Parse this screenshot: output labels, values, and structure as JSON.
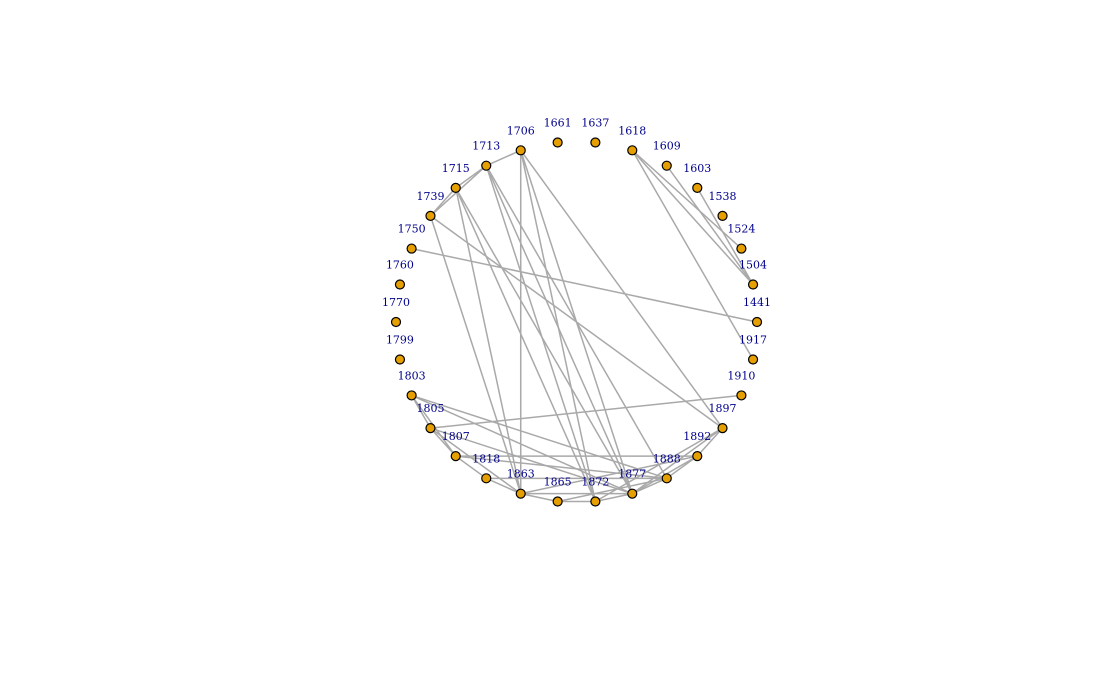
{
  "graph": {
    "layout": "circle",
    "colors": {
      "node_fill": "#E69F00",
      "node_stroke": "#000000",
      "edge": "#A9A9A9",
      "label": "#00008B",
      "background": "#FFFFFF"
    },
    "nodes": [
      {
        "id": "n1637",
        "label": "1637"
      },
      {
        "id": "n1618",
        "label": "1618"
      },
      {
        "id": "n1609",
        "label": "1609"
      },
      {
        "id": "n1603",
        "label": "1603"
      },
      {
        "id": "n1538",
        "label": "1538"
      },
      {
        "id": "n1524",
        "label": "1524"
      },
      {
        "id": "n1504",
        "label": "1504"
      },
      {
        "id": "n1441",
        "label": "1441"
      },
      {
        "id": "n1917",
        "label": "1917"
      },
      {
        "id": "n1910",
        "label": "1910"
      },
      {
        "id": "n1897",
        "label": "1897"
      },
      {
        "id": "n1892",
        "label": "1892"
      },
      {
        "id": "n1888",
        "label": "1888"
      },
      {
        "id": "n1877",
        "label": "1877"
      },
      {
        "id": "n1872",
        "label": "1872"
      },
      {
        "id": "n1865",
        "label": "1865"
      },
      {
        "id": "n1863",
        "label": "1863"
      },
      {
        "id": "n1818",
        "label": "1818"
      },
      {
        "id": "n1807",
        "label": "1807"
      },
      {
        "id": "n1805",
        "label": "1805"
      },
      {
        "id": "n1803",
        "label": "1803"
      },
      {
        "id": "n1799",
        "label": "1799"
      },
      {
        "id": "n1770",
        "label": "1770"
      },
      {
        "id": "n1760",
        "label": "1760"
      },
      {
        "id": "n1750",
        "label": "1750"
      },
      {
        "id": "n1739",
        "label": "1739"
      },
      {
        "id": "n1715",
        "label": "1715"
      },
      {
        "id": "n1713",
        "label": "1713"
      },
      {
        "id": "n1706",
        "label": "1706"
      },
      {
        "id": "n1661",
        "label": "1661"
      }
    ],
    "edges": [
      [
        "1706",
        "1713"
      ],
      [
        "1706",
        "1863"
      ],
      [
        "1706",
        "1872"
      ],
      [
        "1706",
        "1877"
      ],
      [
        "1706",
        "1897"
      ],
      [
        "1713",
        "1739"
      ],
      [
        "1713",
        "1715"
      ],
      [
        "1713",
        "1872"
      ],
      [
        "1713",
        "1877"
      ],
      [
        "1713",
        "1888"
      ],
      [
        "1715",
        "1739"
      ],
      [
        "1715",
        "1863"
      ],
      [
        "1715",
        "1872"
      ],
      [
        "1715",
        "1877"
      ],
      [
        "1739",
        "1863"
      ],
      [
        "1739",
        "1897"
      ],
      [
        "1750",
        "1441"
      ],
      [
        "1618",
        "1504"
      ],
      [
        "1618",
        "1524"
      ],
      [
        "1618",
        "1917"
      ],
      [
        "1609",
        "1504"
      ],
      [
        "1603",
        "1504"
      ],
      [
        "1803",
        "1805"
      ],
      [
        "1803",
        "1807"
      ],
      [
        "1803",
        "1877"
      ],
      [
        "1803",
        "1888"
      ],
      [
        "1805",
        "1910"
      ],
      [
        "1805",
        "1807"
      ],
      [
        "1805",
        "1863"
      ],
      [
        "1805",
        "1877"
      ],
      [
        "1807",
        "1818"
      ],
      [
        "1807",
        "1888"
      ],
      [
        "1807",
        "1892"
      ],
      [
        "1818",
        "1863"
      ],
      [
        "1818",
        "1888"
      ],
      [
        "1863",
        "1865"
      ],
      [
        "1863",
        "1877"
      ],
      [
        "1863",
        "1892"
      ],
      [
        "1865",
        "1872"
      ],
      [
        "1865",
        "1888"
      ],
      [
        "1872",
        "1877"
      ],
      [
        "1872",
        "1897"
      ],
      [
        "1877",
        "1888"
      ],
      [
        "1877",
        "1892"
      ],
      [
        "1877",
        "1897"
      ],
      [
        "1888",
        "1892"
      ],
      [
        "1892",
        "1897"
      ]
    ]
  }
}
